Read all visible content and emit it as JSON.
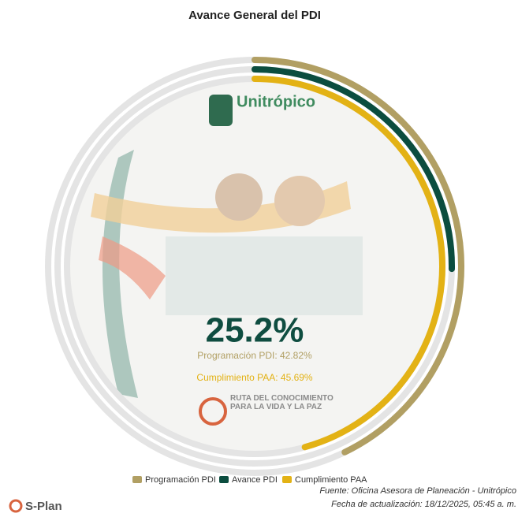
{
  "chart_data": {
    "type": "radialBar",
    "title": "Avance General del PDI",
    "categories": [
      "Programación PDI",
      "Avance PDI",
      "Cumplimiento PAA"
    ],
    "values": [
      42.82,
      25.2,
      45.69
    ],
    "value_labels": [
      "Programación PDI: 42.82%",
      "25.2%",
      "Cumplimiento PAA: 45.69%"
    ],
    "colors": [
      "#b19f63",
      "#0b4d3f",
      "#e3b215"
    ],
    "ylim": [
      0,
      100
    ],
    "legend": "bottom"
  },
  "image_texts": {
    "logo": "Unitrópico",
    "slogan": "RUTA DEL CONOCIMIENTO PARA LA VIDA Y LA PAZ"
  },
  "footer": {
    "source": "Fuente: Oficina Asesora de Planeación - Unitrópico",
    "updated": "Fecha de actualización: 18/12/2025, 05:45 a. m.",
    "brand": "S-Plan"
  }
}
